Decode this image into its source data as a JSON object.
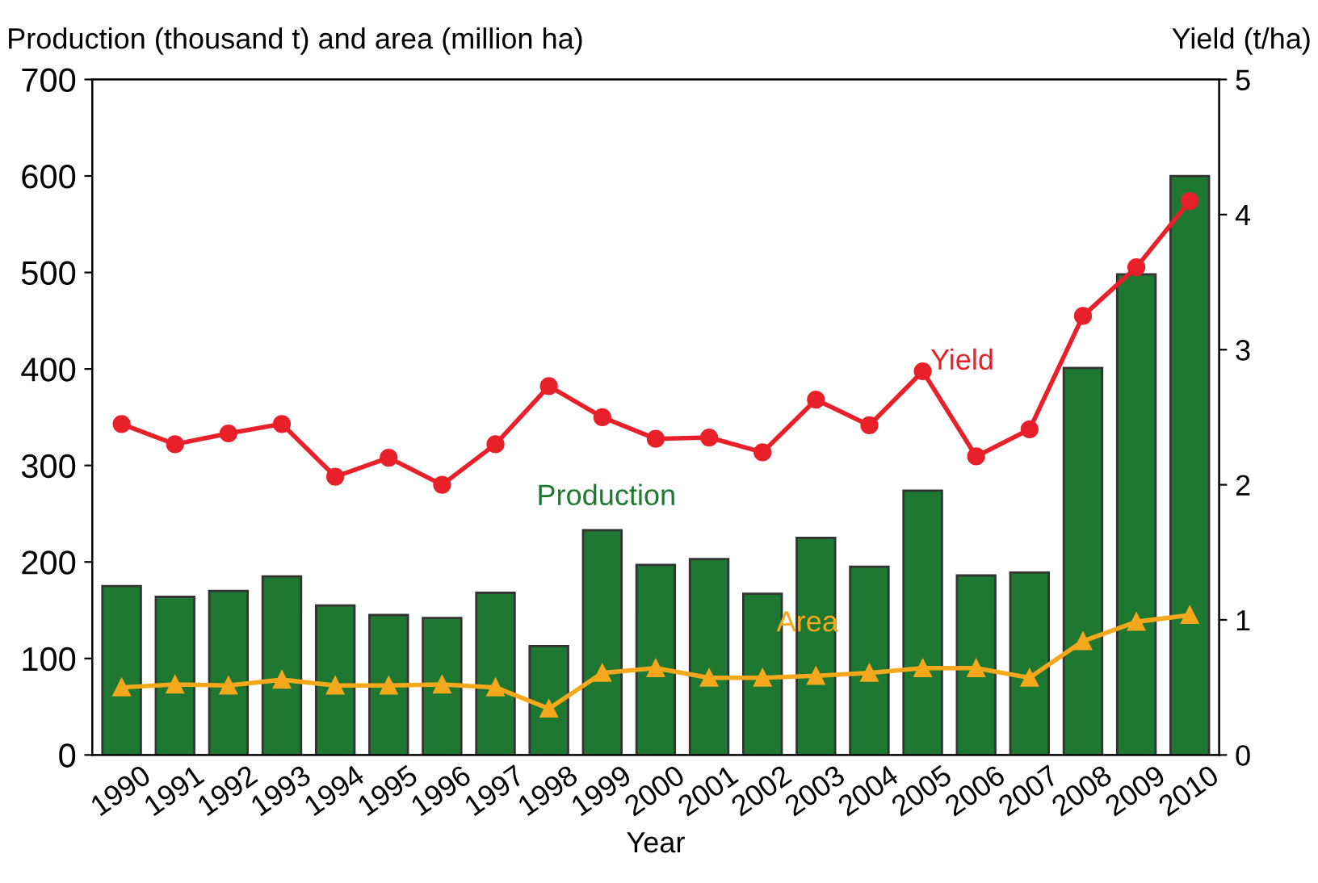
{
  "chart_data": {
    "type": "bar",
    "xlabel": "Year",
    "ylabel": "Production (thousand t) and area (million ha)",
    "y2label": "Yield (t/ha)",
    "categories": [
      "1990",
      "1991",
      "1992",
      "1993",
      "1994",
      "1995",
      "1996",
      "1997",
      "1998",
      "1999",
      "2000",
      "2001",
      "2002",
      "2003",
      "2004",
      "2005",
      "2006",
      "2007",
      "2008",
      "2009",
      "2010"
    ],
    "series": [
      {
        "name": "Production",
        "color": "#1e7832",
        "values": [
          175,
          164,
          170,
          185,
          155,
          145,
          142,
          168,
          113,
          233,
          197,
          203,
          167,
          225,
          195,
          274,
          186,
          189,
          401,
          498,
          600
        ]
      },
      {
        "name": "Area",
        "type": "line",
        "color": "#f5a81c",
        "marker": "triangle",
        "values": [
          70,
          73,
          72,
          78,
          72,
          72,
          73,
          70,
          48,
          85,
          90,
          80,
          80,
          82,
          85,
          90,
          90,
          80,
          118,
          138,
          145
        ]
      },
      {
        "name": "Yield",
        "type": "line",
        "axis": "y2",
        "color": "#e8202a",
        "marker": "circle",
        "values": [
          2.45,
          2.3,
          2.38,
          2.45,
          2.06,
          2.2,
          2.0,
          2.3,
          2.73,
          2.5,
          2.34,
          2.35,
          2.24,
          2.63,
          2.44,
          2.84,
          2.21,
          2.41,
          3.25,
          3.61,
          4.1
        ]
      }
    ],
    "ylim": [
      0,
      700
    ],
    "yticks": [
      0,
      100,
      200,
      300,
      400,
      500,
      600,
      700
    ],
    "y2lim": [
      0,
      5
    ],
    "y2ticks": [
      0,
      1,
      2,
      3,
      4,
      5
    ],
    "grid": false,
    "legend": false
  }
}
